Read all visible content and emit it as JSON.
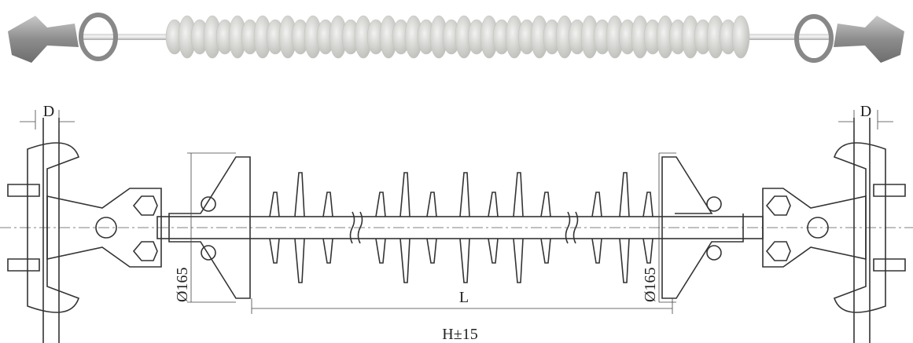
{
  "dimensions": {
    "d_left": "D",
    "d_right": "D",
    "diameter_left": "Ø165",
    "diameter_right": "Ø165",
    "length": "L",
    "height": "H±15"
  }
}
